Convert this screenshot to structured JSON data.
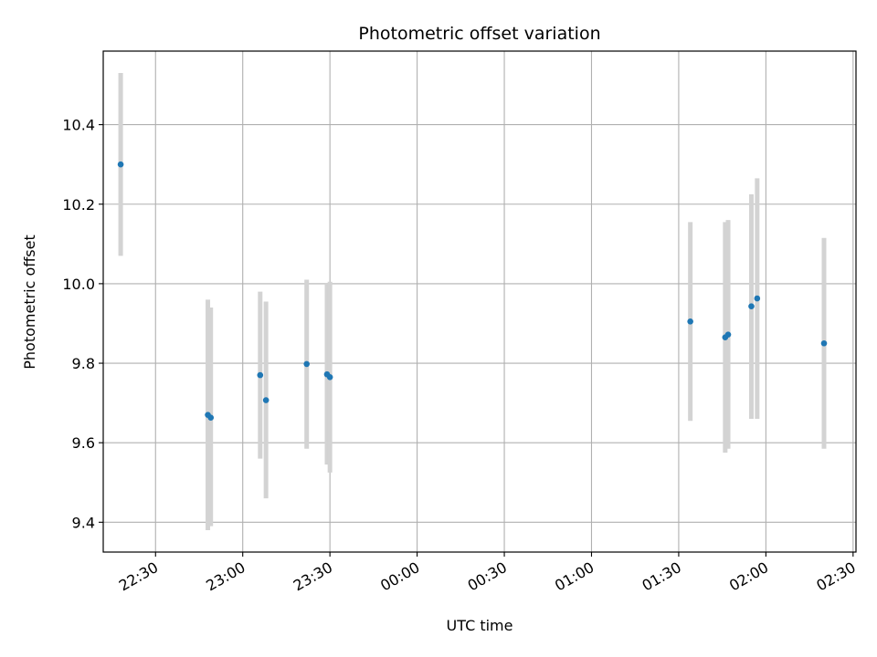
{
  "chart_data": {
    "type": "scatter",
    "title": "Photometric offset variation",
    "xlabel": "UTC time",
    "ylabel": "Photometric offset",
    "grid": true,
    "x_ticks": [
      "22:30",
      "23:00",
      "23:30",
      "00:00",
      "00:30",
      "01:00",
      "01:30",
      "02:00",
      "02:30"
    ],
    "y_ticks": [
      "9.4",
      "9.6",
      "9.8",
      "10.0",
      "10.2",
      "10.4"
    ],
    "y_tick_values": [
      9.4,
      9.6,
      9.8,
      10.0,
      10.2,
      10.4
    ],
    "xlim": [
      "22:12",
      "02:31"
    ],
    "ylim": [
      9.325,
      10.585
    ],
    "points": [
      {
        "x": "22:18",
        "y": 10.3,
        "low": 10.07,
        "high": 10.53
      },
      {
        "x": "22:48",
        "y": 9.67,
        "low": 9.38,
        "high": 9.96
      },
      {
        "x": "22:49",
        "y": 9.663,
        "low": 9.39,
        "high": 9.94
      },
      {
        "x": "23:06",
        "y": 9.77,
        "low": 9.56,
        "high": 9.98
      },
      {
        "x": "23:08",
        "y": 9.707,
        "low": 9.46,
        "high": 9.955
      },
      {
        "x": "23:22",
        "y": 9.798,
        "low": 9.585,
        "high": 10.01
      },
      {
        "x": "23:29",
        "y": 9.772,
        "low": 9.545,
        "high": 10.0
      },
      {
        "x": "23:30",
        "y": 9.765,
        "low": 9.525,
        "high": 10.005
      },
      {
        "x": "01:34",
        "y": 9.905,
        "low": 9.655,
        "high": 10.155
      },
      {
        "x": "01:46",
        "y": 9.865,
        "low": 9.575,
        "high": 10.155
      },
      {
        "x": "01:47",
        "y": 9.872,
        "low": 9.585,
        "high": 10.16
      },
      {
        "x": "01:55",
        "y": 9.943,
        "low": 9.66,
        "high": 10.225
      },
      {
        "x": "01:57",
        "y": 9.963,
        "low": 9.66,
        "high": 10.265
      },
      {
        "x": "02:20",
        "y": 9.85,
        "low": 9.585,
        "high": 10.115
      }
    ],
    "colors": {
      "point": "#1f77b4",
      "errorbar": "#d3d3d3",
      "grid": "#b0b0b0"
    }
  }
}
